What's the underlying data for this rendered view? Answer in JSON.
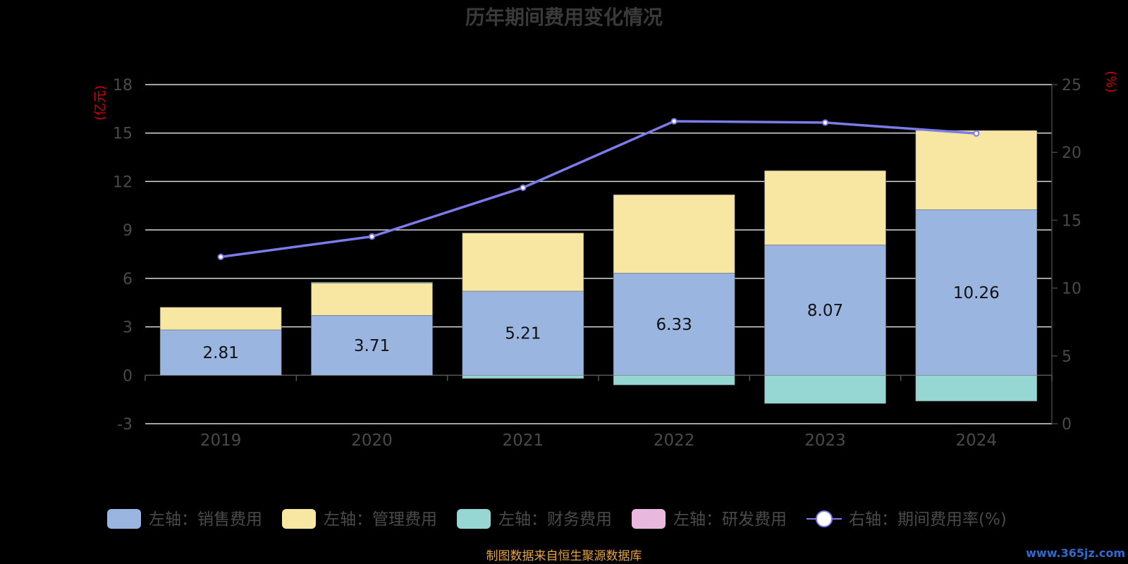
{
  "chart_data": {
    "type": "bar",
    "stacked": true,
    "title": "历年期间费用变化情况",
    "categories": [
      "2019",
      "2020",
      "2021",
      "2022",
      "2023",
      "2024"
    ],
    "left_axis": {
      "unit": "(亿元)",
      "ylim": [
        -3,
        18
      ],
      "ticks": [
        -3,
        0,
        3,
        6,
        9,
        12,
        15,
        18
      ]
    },
    "right_axis": {
      "unit": "(%)",
      "ylim": [
        0,
        25
      ],
      "ticks": [
        0,
        5,
        10,
        15,
        20,
        25
      ]
    },
    "series": [
      {
        "name": "左轴：销售费用",
        "type": "bar",
        "axis": "left",
        "color": "#9ab6e0",
        "values": [
          2.81,
          3.71,
          5.21,
          6.33,
          8.07,
          10.26
        ],
        "labels": [
          "2.81",
          "3.71",
          "5.21",
          "6.33",
          "8.07",
          "10.26"
        ]
      },
      {
        "name": "左轴：管理费用",
        "type": "bar",
        "axis": "left",
        "color": "#f8e6a3",
        "values": [
          1.4,
          2.0,
          3.6,
          4.85,
          4.6,
          4.9
        ]
      },
      {
        "name": "左轴：财务费用",
        "type": "bar",
        "axis": "left",
        "color": "#96d6d3",
        "values": [
          0.0,
          0.05,
          -0.2,
          -0.6,
          -1.75,
          -1.6
        ]
      },
      {
        "name": "左轴：研发费用",
        "type": "bar",
        "axis": "left",
        "color": "#e8b9dc",
        "values": [
          0,
          0,
          0,
          0,
          0,
          0
        ]
      },
      {
        "name": "右轴：期间费用率(%)",
        "type": "line",
        "axis": "right",
        "color": "#7b7bea",
        "values": [
          12.3,
          13.8,
          17.4,
          22.3,
          22.2,
          21.4
        ]
      }
    ],
    "grid": true,
    "legend_position": "bottom"
  },
  "source_note": "制图数据来自恒生聚源数据库",
  "watermark": "www.365jz.com"
}
